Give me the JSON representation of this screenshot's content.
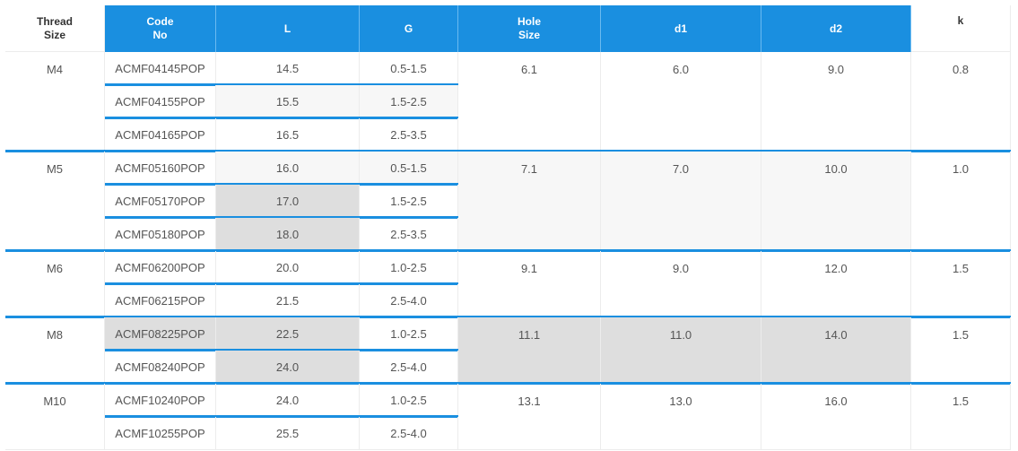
{
  "headers": [
    "Thread\nSize",
    "Code\nNo",
    "L",
    "G",
    "Hole\nSize",
    "d1",
    "d2",
    "k"
  ],
  "groups": [
    {
      "thread": "M4",
      "hole": "6.1",
      "d1": "6.0",
      "d2": "9.0",
      "k": "0.8",
      "rows": [
        {
          "code": "ACMF04145POP",
          "L": "14.5",
          "G": "0.5-1.5"
        },
        {
          "code": "ACMF04155POP",
          "L": "15.5",
          "G": "1.5-2.5"
        },
        {
          "code": "ACMF04165POP",
          "L": "16.5",
          "G": "2.5-3.5"
        }
      ]
    },
    {
      "thread": "M5",
      "hole": "7.1",
      "d1": "7.0",
      "d2": "10.0",
      "k": "1.0",
      "rows": [
        {
          "code": "ACMF05160POP",
          "L": "16.0",
          "G": "0.5-1.5"
        },
        {
          "code": "ACMF05170POP",
          "L": "17.0",
          "G": "1.5-2.5"
        },
        {
          "code": "ACMF05180POP",
          "L": "18.0",
          "G": "2.5-3.5"
        }
      ]
    },
    {
      "thread": "M6",
      "hole": "9.1",
      "d1": "9.0",
      "d2": "12.0",
      "k": "1.5",
      "rows": [
        {
          "code": "ACMF06200POP",
          "L": "20.0",
          "G": "1.0-2.5"
        },
        {
          "code": "ACMF06215POP",
          "L": "21.5",
          "G": "2.5-4.0"
        }
      ]
    },
    {
      "thread": "M8",
      "hole": "11.1",
      "d1": "11.0",
      "d2": "14.0",
      "k": "1.5",
      "rows": [
        {
          "code": "ACMF08225POP",
          "L": "22.5",
          "G": "1.0-2.5"
        },
        {
          "code": "ACMF08240POP",
          "L": "24.0",
          "G": "2.5-4.0"
        }
      ]
    },
    {
      "thread": "M10",
      "hole": "13.1",
      "d1": "13.0",
      "d2": "16.0",
      "k": "1.5",
      "rows": [
        {
          "code": "ACMF10240POP",
          "L": "24.0",
          "G": "1.0-2.5"
        },
        {
          "code": "ACMF10255POP",
          "L": "25.5",
          "G": "2.5-4.0"
        }
      ]
    }
  ],
  "colors": {
    "header_blue": "#1a8fe0",
    "highlight_gray": "#dedede",
    "alt_row": "#f7f7f7"
  }
}
